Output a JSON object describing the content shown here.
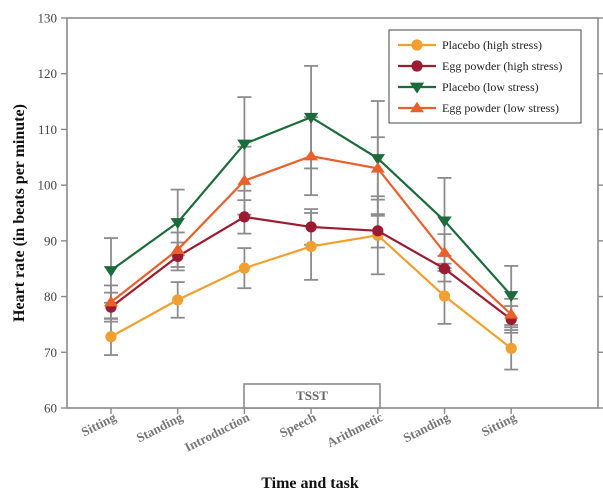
{
  "chart_data": {
    "type": "line",
    "title": "",
    "xlabel": "Time and task",
    "ylabel": "Heart rate (in beats per minute)",
    "ylim": [
      60,
      130
    ],
    "yticks": [
      60,
      70,
      80,
      90,
      100,
      110,
      120,
      130
    ],
    "categories": [
      "Sitting",
      "Standing",
      "Introduction",
      "Speech",
      "Arithmetic",
      "Standing",
      "Sitting"
    ],
    "bracket_label": "TSST",
    "legend_position": "top-right",
    "series": [
      {
        "name": "Placebo (high stress)",
        "color": "#f0a030",
        "marker": "circle",
        "values": [
          72.8,
          79.4,
          85.1,
          89.0,
          91.0,
          80.1,
          70.7
        ],
        "errors": [
          3.3,
          3.2,
          3.6,
          6.0,
          7.0,
          5.0,
          3.8
        ]
      },
      {
        "name": "Egg powder (high stress)",
        "color": "#9b1b30",
        "marker": "circle",
        "values": [
          78.1,
          87.2,
          94.3,
          92.5,
          91.8,
          85.0,
          75.9
        ],
        "errors": [
          2.6,
          2.5,
          3.0,
          3.2,
          3.0,
          2.3,
          2.4
        ]
      },
      {
        "name": "Placebo (low stress)",
        "color": "#1c6b3a",
        "marker": "triangle-down",
        "values": [
          84.7,
          93.3,
          107.4,
          112.2,
          104.8,
          93.6,
          80.2
        ],
        "errors": [
          5.8,
          5.9,
          8.4,
          9.2,
          10.3,
          7.7,
          5.3
        ]
      },
      {
        "name": "Egg powder (low stress)",
        "color": "#e8602c",
        "marker": "triangle-up",
        "values": [
          79.0,
          88.4,
          100.8,
          105.2,
          103.0,
          87.9,
          76.8
        ],
        "errors": [
          3.0,
          3.1,
          6.1,
          7.0,
          5.6,
          3.3,
          2.8
        ]
      }
    ]
  }
}
